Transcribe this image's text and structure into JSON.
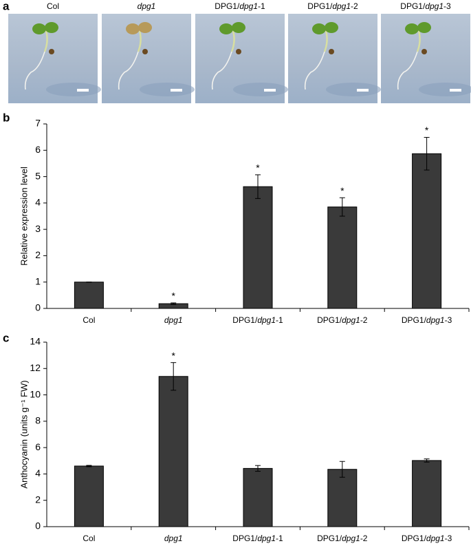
{
  "panel_a": {
    "letter": "a",
    "labels": [
      "Col",
      "dpg1",
      "DPG1/dpg1-1",
      "DPG1/dpg1-2",
      "DPG1/dpg1-3"
    ]
  },
  "chart_data": [
    {
      "type": "bar",
      "letter": "b",
      "ylabel": "Relative expression level",
      "categories": [
        "Col",
        "dpg1",
        "DPG1/dpg1-1",
        "DPG1/dpg1-2",
        "DPG1/dpg1-3"
      ],
      "values": [
        1.0,
        0.18,
        4.62,
        3.85,
        5.87
      ],
      "errors": [
        0.0,
        0.03,
        0.45,
        0.35,
        0.62
      ],
      "significance": [
        null,
        "*",
        "*",
        "*",
        "*"
      ],
      "color": "#3a3a3a",
      "ylim": [
        0,
        7
      ],
      "yticks": [
        0,
        1,
        2,
        3,
        4,
        5,
        6,
        7
      ]
    },
    {
      "type": "bar",
      "letter": "c",
      "ylabel": "Anthocyanin (units g⁻¹ FW)",
      "categories": [
        "Col",
        "dpg1",
        "DPG1/dpg1-1",
        "DPG1/dpg1-2",
        "DPG1/dpg1-3"
      ],
      "values": [
        4.6,
        11.4,
        4.42,
        4.35,
        5.02
      ],
      "errors": [
        0.05,
        1.05,
        0.22,
        0.6,
        0.12
      ],
      "significance": [
        null,
        "*",
        null,
        null,
        null
      ],
      "color": "#3a3a3a",
      "ylim": [
        0,
        14
      ],
      "yticks": [
        0,
        2,
        4,
        6,
        8,
        10,
        12,
        14
      ]
    }
  ]
}
